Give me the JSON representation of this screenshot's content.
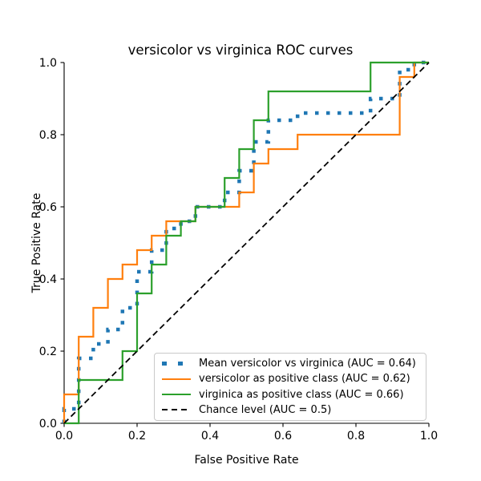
{
  "chart_data": {
    "type": "line",
    "title": "versicolor vs virginica ROC curves",
    "xlabel": "False Positive Rate",
    "ylabel": "True Positive Rate",
    "xlim": [
      0.0,
      1.0
    ],
    "ylim": [
      0.0,
      1.0
    ],
    "grid": false,
    "legend_position": "lower right",
    "xticks": {
      "values": [
        0.0,
        0.2,
        0.4,
        0.6,
        0.8,
        1.0
      ],
      "labels": [
        "0.0",
        "0.2",
        "0.4",
        "0.6",
        "0.8",
        "1.0"
      ]
    },
    "yticks": {
      "values": [
        0.0,
        0.2,
        0.4,
        0.6,
        0.8,
        1.0
      ],
      "labels": [
        "0.0",
        "0.2",
        "0.4",
        "0.6",
        "0.8",
        "1.0"
      ]
    },
    "series": [
      {
        "name": "mean-roc",
        "label": "Mean versicolor vs virginica (AUC = 0.64)",
        "auc": 0.64,
        "color": "#1f77b4",
        "style": "dotted",
        "linewidth": 4.5,
        "points": [
          [
            0,
            0
          ],
          [
            0,
            0.04
          ],
          [
            0.04,
            0.04
          ],
          [
            0.04,
            0.18
          ],
          [
            0.08,
            0.18
          ],
          [
            0.08,
            0.22
          ],
          [
            0.12,
            0.22
          ],
          [
            0.12,
            0.26
          ],
          [
            0.16,
            0.26
          ],
          [
            0.16,
            0.32
          ],
          [
            0.2,
            0.32
          ],
          [
            0.2,
            0.42
          ],
          [
            0.24,
            0.42
          ],
          [
            0.24,
            0.48
          ],
          [
            0.28,
            0.48
          ],
          [
            0.28,
            0.54
          ],
          [
            0.32,
            0.54
          ],
          [
            0.32,
            0.56
          ],
          [
            0.36,
            0.56
          ],
          [
            0.36,
            0.6
          ],
          [
            0.44,
            0.6
          ],
          [
            0.44,
            0.64
          ],
          [
            0.48,
            0.64
          ],
          [
            0.48,
            0.7
          ],
          [
            0.52,
            0.7
          ],
          [
            0.52,
            0.78
          ],
          [
            0.56,
            0.78
          ],
          [
            0.56,
            0.84
          ],
          [
            0.64,
            0.84
          ],
          [
            0.64,
            0.86
          ],
          [
            0.84,
            0.86
          ],
          [
            0.84,
            0.9
          ],
          [
            0.92,
            0.9
          ],
          [
            0.92,
            0.98
          ],
          [
            0.96,
            0.98
          ],
          [
            0.96,
            1
          ],
          [
            1,
            1
          ]
        ]
      },
      {
        "name": "versicolor-roc",
        "label": "versicolor as positive class (AUC = 0.62)",
        "auc": 0.62,
        "color": "#ff7f0e",
        "style": "solid",
        "linewidth": 2.2,
        "points": [
          [
            0,
            0
          ],
          [
            0,
            0.08
          ],
          [
            0.04,
            0.08
          ],
          [
            0.04,
            0.24
          ],
          [
            0.08,
            0.24
          ],
          [
            0.08,
            0.32
          ],
          [
            0.12,
            0.32
          ],
          [
            0.12,
            0.4
          ],
          [
            0.16,
            0.4
          ],
          [
            0.16,
            0.44
          ],
          [
            0.2,
            0.44
          ],
          [
            0.2,
            0.48
          ],
          [
            0.24,
            0.48
          ],
          [
            0.24,
            0.52
          ],
          [
            0.28,
            0.52
          ],
          [
            0.28,
            0.56
          ],
          [
            0.36,
            0.56
          ],
          [
            0.36,
            0.6
          ],
          [
            0.48,
            0.6
          ],
          [
            0.48,
            0.64
          ],
          [
            0.52,
            0.64
          ],
          [
            0.52,
            0.72
          ],
          [
            0.56,
            0.72
          ],
          [
            0.56,
            0.76
          ],
          [
            0.64,
            0.76
          ],
          [
            0.64,
            0.8
          ],
          [
            0.92,
            0.8
          ],
          [
            0.92,
            0.96
          ],
          [
            0.96,
            0.96
          ],
          [
            0.96,
            1
          ],
          [
            1,
            1
          ]
        ]
      },
      {
        "name": "virginica-roc",
        "label": "virginica as positive class (AUC = 0.66)",
        "auc": 0.66,
        "color": "#2ca02c",
        "style": "solid",
        "linewidth": 2.2,
        "points": [
          [
            0,
            0
          ],
          [
            0.04,
            0
          ],
          [
            0.04,
            0.12
          ],
          [
            0.16,
            0.12
          ],
          [
            0.16,
            0.2
          ],
          [
            0.2,
            0.2
          ],
          [
            0.2,
            0.36
          ],
          [
            0.24,
            0.36
          ],
          [
            0.24,
            0.44
          ],
          [
            0.28,
            0.44
          ],
          [
            0.28,
            0.52
          ],
          [
            0.32,
            0.52
          ],
          [
            0.32,
            0.56
          ],
          [
            0.36,
            0.56
          ],
          [
            0.36,
            0.6
          ],
          [
            0.44,
            0.6
          ],
          [
            0.44,
            0.68
          ],
          [
            0.48,
            0.68
          ],
          [
            0.48,
            0.76
          ],
          [
            0.52,
            0.76
          ],
          [
            0.52,
            0.84
          ],
          [
            0.56,
            0.84
          ],
          [
            0.56,
            0.92
          ],
          [
            0.84,
            0.92
          ],
          [
            0.84,
            1
          ],
          [
            1,
            1
          ]
        ]
      },
      {
        "name": "chance-level",
        "label": "Chance level (AUC = 0.5)",
        "auc": 0.5,
        "color": "#000000",
        "style": "dashed",
        "linewidth": 1.8,
        "points": [
          [
            0,
            0
          ],
          [
            1,
            1
          ]
        ]
      }
    ]
  }
}
